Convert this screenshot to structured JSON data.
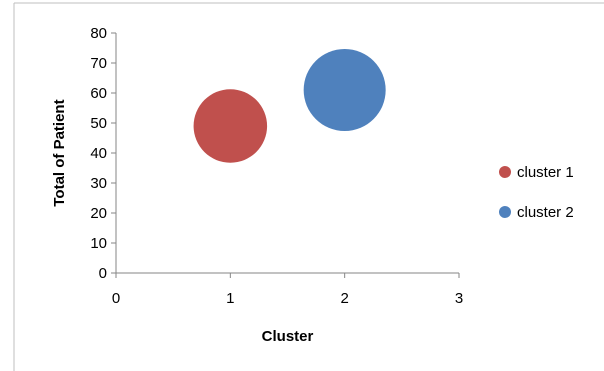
{
  "chart_data": {
    "type": "bubble",
    "xlabel": "Cluster",
    "ylabel": "Total of Patient",
    "xlim": [
      0,
      3
    ],
    "ylim": [
      0,
      80
    ],
    "x_ticks": [
      0,
      1,
      2,
      3
    ],
    "y_ticks": [
      0,
      10,
      20,
      30,
      40,
      50,
      60,
      70,
      80
    ],
    "grid": false,
    "legend_position": "right",
    "series": [
      {
        "name": "cluster 1",
        "x": 1,
        "y": 49,
        "size": 49,
        "color": "#C0504D"
      },
      {
        "name": "cluster 2",
        "x": 2,
        "y": 61,
        "size": 61,
        "color": "#4F81BD"
      }
    ]
  }
}
